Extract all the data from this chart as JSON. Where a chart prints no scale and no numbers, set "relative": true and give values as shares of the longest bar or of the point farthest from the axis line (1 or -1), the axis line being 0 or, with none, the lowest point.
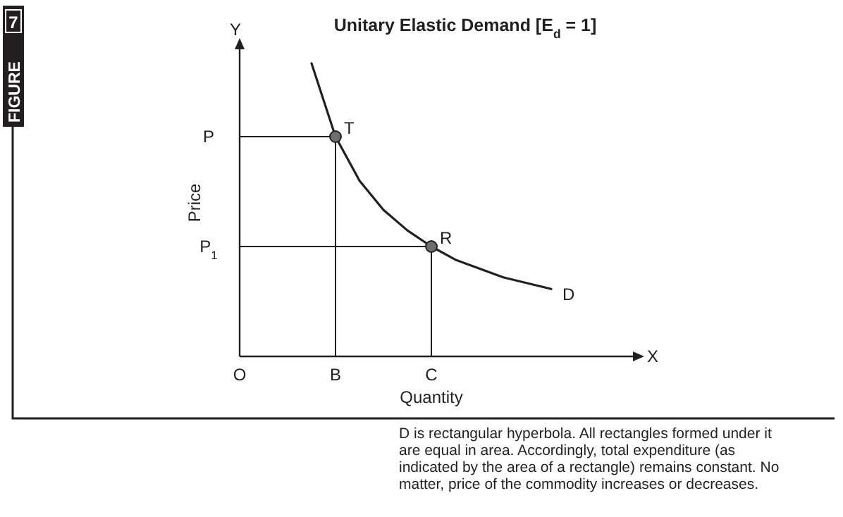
{
  "chart_data": {
    "type": "line",
    "title": "Unitary Elastic Demand [E$_{d}$ = 1]",
    "xlabel": "Quantity",
    "ylabel": "Price",
    "relative": true,
    "categories": [
      "O",
      null,
      null,
      null,
      "B",
      null,
      null,
      null,
      "C",
      null,
      null,
      null,
      null,
      null,
      null,
      null,
      null
    ],
    "grid": false,
    "series": [
      {
        "color": "#231f20",
        "values": [
          null,
          null,
          null,
          1,
          0.75,
          0.6,
          0.5,
          0.43,
          0.375,
          0.33,
          0.3,
          0.27,
          0.25,
          0.23,
          null,
          null,
          null
        ]
      },
      {
        "color": "#231f20",
        "x": [
          "O",
          "B",
          "B"
        ],
        "values": [
          0.75,
          0.75,
          0
        ]
      },
      {
        "color": "#231f20",
        "x": [
          "O",
          "C",
          "C"
        ],
        "values": [
          0.375,
          0.375,
          0
        ]
      },
      {
        "type": "scatter",
        "color": "#6d6e70",
        "marker": "circle",
        "x": [
          "B",
          "C"
        ],
        "values": [
          0.75,
          0.375
        ]
      }
    ],
    "annotations": [
      "FIGURE 7",
      "D is rectangular hyperbola. All rectangles formed under it are equal in area. Accordingly, total expenditure (as indicated by the area of a rectangle) remains constant. No matter, price of the commodity increases or decreases.",
      "Y",
      "X",
      "D",
      "P",
      "P$_{1}$",
      {
        "text": "T",
        "x": "B",
        "y": 0.75
      },
      {
        "text": "R",
        "x": "C",
        "y": 0.375
      }
    ]
  }
}
